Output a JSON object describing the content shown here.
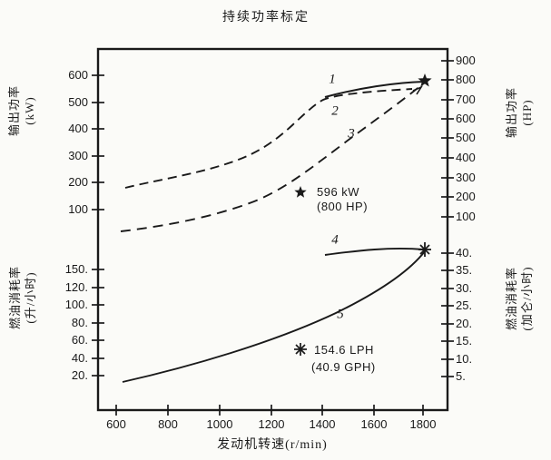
{
  "title": "持续功率标定",
  "axes": {
    "left_power": {
      "name": "输出功率",
      "unit": "(kW)",
      "ticks": [
        "600",
        "500",
        "400",
        "300",
        "200",
        "100"
      ]
    },
    "left_fuel": {
      "name": "燃油消耗率",
      "unit": "(升/小时)",
      "ticks": [
        "150.",
        "120.",
        "100.",
        "80.",
        "60.",
        "40.",
        "20."
      ]
    },
    "right_power": {
      "name": "输出功率",
      "unit": "(HP)",
      "ticks": [
        "900",
        "800",
        "700",
        "600",
        "500",
        "400",
        "300",
        "200",
        "100"
      ]
    },
    "right_fuel": {
      "name": "燃油消耗率",
      "unit": "(加仑/小时)",
      "ticks": [
        "40.",
        "35.",
        "30.",
        "25.",
        "20.",
        "15.",
        "10.",
        "5."
      ]
    },
    "x": {
      "name": "发动机转速(r/min)",
      "ticks": [
        "600",
        "800",
        "1000",
        "1200",
        "1400",
        "1600",
        "1800"
      ]
    }
  },
  "curve_labels": {
    "c1": "1",
    "c2": "2",
    "c3": "3",
    "c4": "4",
    "c5": "5"
  },
  "annotations": {
    "power_rating": {
      "marker": "star",
      "line1": "596 kW",
      "line2": "(800 HP)"
    },
    "fuel_rating": {
      "marker": "asterisk",
      "line1": "154.6 LPH",
      "line2": "(40.9 GPH)"
    }
  },
  "colors": {
    "ink": "#1a1a1a",
    "background": "#fbfbf8"
  },
  "chart_data": {
    "type": "line",
    "title": "持续功率标定",
    "xlabel": "发动机转速(r/min)",
    "x_range": [
      600,
      1800
    ],
    "grid": false,
    "axes": [
      {
        "side": "left-top",
        "label": "输出功率 (kW)",
        "ticks": [
          600,
          500,
          400,
          300,
          200,
          100
        ]
      },
      {
        "side": "left-bottom",
        "label": "燃油消耗率 (升/小时)",
        "ticks": [
          150,
          120,
          100,
          80,
          60,
          40,
          20
        ]
      },
      {
        "side": "right-top",
        "label": "输出功率 (HP)",
        "ticks": [
          900,
          800,
          700,
          600,
          500,
          400,
          300,
          200,
          100
        ]
      },
      {
        "side": "right-bottom",
        "label": "燃油消耗率 (加仑/小时)",
        "ticks": [
          40,
          35,
          30,
          25,
          20,
          15,
          10,
          5
        ]
      }
    ],
    "series": [
      {
        "name": "1",
        "style": "solid",
        "unit": "kW",
        "points": [
          [
            1420,
            515
          ],
          [
            1500,
            545
          ],
          [
            1600,
            565
          ],
          [
            1700,
            582
          ],
          [
            1800,
            596
          ]
        ]
      },
      {
        "name": "2",
        "style": "dashed",
        "unit": "kW",
        "points": [
          [
            630,
            190
          ],
          [
            800,
            225
          ],
          [
            1000,
            280
          ],
          [
            1200,
            360
          ],
          [
            1320,
            460
          ],
          [
            1400,
            510
          ],
          [
            1600,
            535
          ],
          [
            1780,
            555
          ]
        ]
      },
      {
        "name": "3",
        "style": "dashed",
        "unit": "kW",
        "points": [
          [
            620,
            25
          ],
          [
            800,
            45
          ],
          [
            1000,
            80
          ],
          [
            1250,
            175
          ],
          [
            1420,
            310
          ],
          [
            1600,
            425
          ],
          [
            1740,
            500
          ],
          [
            1800,
            596
          ]
        ]
      },
      {
        "name": "4",
        "style": "solid",
        "unit": "LPH",
        "points": [
          [
            1430,
            148
          ],
          [
            1600,
            156
          ],
          [
            1700,
            157
          ],
          [
            1800,
            154.6
          ]
        ]
      },
      {
        "name": "5",
        "style": "solid",
        "unit": "LPH",
        "points": [
          [
            620,
            14
          ],
          [
            800,
            21
          ],
          [
            1000,
            38
          ],
          [
            1200,
            59
          ],
          [
            1400,
            84
          ],
          [
            1600,
            120
          ],
          [
            1800,
            154.6
          ]
        ]
      }
    ],
    "markers": [
      {
        "symbol": "star",
        "x": 1800,
        "value": "596 kW",
        "alt_value": "800 HP"
      },
      {
        "symbol": "asterisk",
        "x": 1800,
        "value": "154.6 LPH",
        "alt_value": "40.9 GPH"
      }
    ]
  }
}
